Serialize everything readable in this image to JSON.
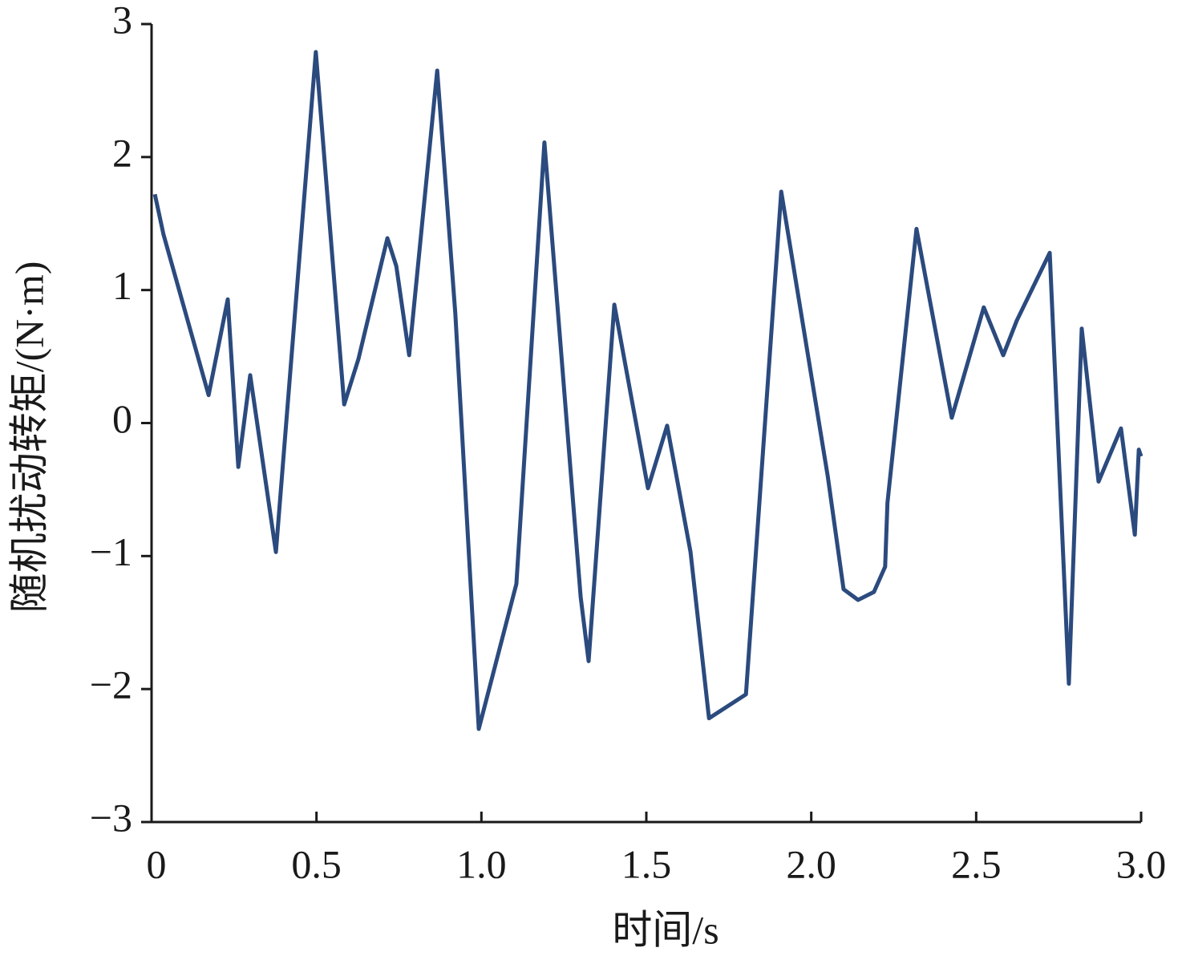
{
  "chart_data": {
    "type": "line",
    "x_label": "时间/s",
    "y_label": "随机扰动转矩/(N·m)",
    "x": [
      0.01,
      0.036,
      0.173,
      0.231,
      0.263,
      0.299,
      0.377,
      0.498,
      0.584,
      0.627,
      0.715,
      0.742,
      0.781,
      0.866,
      0.921,
      0.992,
      1.106,
      1.191,
      1.301,
      1.325,
      1.403,
      1.505,
      1.563,
      1.634,
      1.69,
      1.802,
      1.909,
      2.05,
      2.098,
      2.142,
      2.19,
      2.224,
      2.231,
      2.319,
      2.426,
      2.523,
      2.582,
      2.623,
      2.723,
      2.781,
      2.82,
      2.871,
      2.939,
      2.981,
      2.993,
      3.0
    ],
    "series": [
      {
        "color": "#2b4a7e",
        "values": [
          1.72,
          1.42,
          0.21,
          0.93,
          -0.33,
          0.36,
          -0.97,
          2.79,
          0.14,
          0.48,
          1.39,
          1.18,
          0.51,
          2.65,
          0.82,
          -2.3,
          -1.21,
          2.11,
          -1.31,
          -1.79,
          0.89,
          -0.49,
          -0.02,
          -0.97,
          -2.22,
          -2.04,
          1.74,
          -0.4,
          -1.25,
          -1.33,
          -1.27,
          -1.08,
          -0.6,
          1.46,
          0.04,
          0.87,
          0.51,
          0.77,
          1.28,
          -1.96,
          0.71,
          -0.44,
          -0.04,
          -0.84,
          -0.2,
          -0.25
        ]
      }
    ],
    "xlim": [
      0,
      3.0
    ],
    "ylim": [
      -3,
      3
    ],
    "xticks": [
      0,
      0.5,
      {
        "value": 1.0,
        "label": "1.0"
      },
      1.5,
      {
        "value": 2.0,
        "label": "2.0"
      },
      2.5,
      {
        "value": 3.0,
        "label": "3.0"
      }
    ],
    "yticks": [
      {
        "value": -3,
        "label": "−3"
      },
      {
        "value": -2,
        "label": "−2"
      },
      {
        "value": -1,
        "label": "−1"
      },
      0,
      1,
      2,
      3
    ]
  }
}
